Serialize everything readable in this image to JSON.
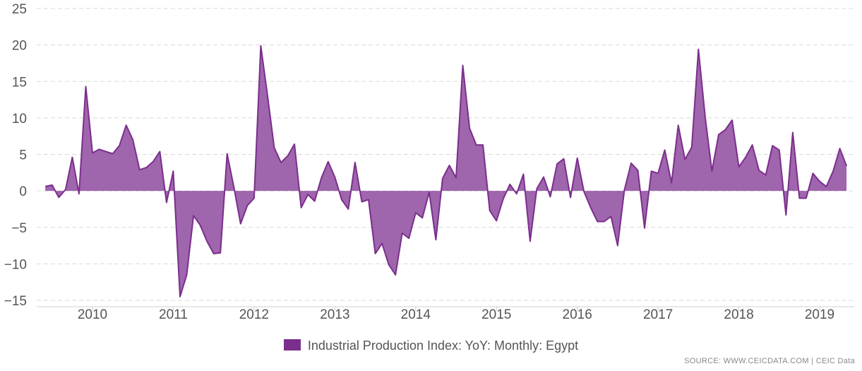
{
  "chart_data": {
    "type": "area",
    "ylim": [
      -15,
      25
    ],
    "yticks": [
      25,
      20,
      15,
      10,
      5,
      0,
      -5,
      -10,
      -15
    ],
    "xticks": [
      "2010",
      "2011",
      "2012",
      "2013",
      "2014",
      "2015",
      "2016",
      "2017",
      "2018",
      "2019"
    ],
    "series": [
      {
        "name": "Industrial Production Index: YoY: Monthly: Egypt",
        "color": "#7b2f8c",
        "fill": "#8e4a9f",
        "x": [
          "2009-06",
          "2009-07",
          "2009-08",
          "2009-09",
          "2009-10",
          "2009-11",
          "2009-12",
          "2010-01",
          "2010-02",
          "2010-03",
          "2010-04",
          "2010-05",
          "2010-06",
          "2010-07",
          "2010-08",
          "2010-09",
          "2010-10",
          "2010-11",
          "2010-12",
          "2011-01",
          "2011-02",
          "2011-03",
          "2011-04",
          "2011-05",
          "2011-06",
          "2011-07",
          "2011-08",
          "2011-09",
          "2011-10",
          "2011-11",
          "2011-12",
          "2012-01",
          "2012-02",
          "2012-03",
          "2012-04",
          "2012-05",
          "2012-06",
          "2012-07",
          "2012-08",
          "2012-09",
          "2012-10",
          "2012-11",
          "2012-12",
          "2013-01",
          "2013-02",
          "2013-03",
          "2013-04",
          "2013-05",
          "2013-06",
          "2013-07",
          "2013-08",
          "2013-09",
          "2013-10",
          "2013-11",
          "2013-12",
          "2014-01",
          "2014-02",
          "2014-03",
          "2014-04",
          "2014-05",
          "2014-06",
          "2014-07",
          "2014-08",
          "2014-09",
          "2014-10",
          "2014-11",
          "2014-12",
          "2015-01",
          "2015-02",
          "2015-03",
          "2015-04",
          "2015-05",
          "2015-06",
          "2015-07",
          "2015-08",
          "2015-09",
          "2015-10",
          "2015-11",
          "2015-12",
          "2016-01",
          "2016-02",
          "2016-03",
          "2016-04",
          "2016-05",
          "2016-06",
          "2016-07",
          "2016-08",
          "2016-09",
          "2016-10",
          "2016-11",
          "2016-12",
          "2017-01",
          "2017-02",
          "2017-03",
          "2017-04",
          "2017-05",
          "2017-06",
          "2017-07",
          "2017-08",
          "2017-09",
          "2017-10",
          "2017-11",
          "2017-12",
          "2018-01",
          "2018-02",
          "2018-03",
          "2018-04",
          "2018-05",
          "2018-06",
          "2018-07",
          "2018-08",
          "2018-09",
          "2018-10",
          "2018-11",
          "2018-12",
          "2019-01",
          "2019-02",
          "2019-03",
          "2019-04",
          "2019-05"
        ],
        "y": [
          0.6,
          0.8,
          -0.9,
          0.2,
          4.6,
          -0.4,
          14.3,
          5.2,
          5.7,
          5.4,
          5.1,
          6.2,
          9.0,
          7.0,
          2.9,
          3.2,
          4.0,
          5.4,
          -1.6,
          2.7,
          -14.5,
          -11.5,
          -3.4,
          -4.7,
          -6.9,
          -8.6,
          -8.5,
          5.1,
          0.5,
          -4.5,
          -2.0,
          -1.0,
          19.9,
          13.0,
          5.9,
          3.9,
          4.8,
          6.4,
          -2.3,
          -0.5,
          -1.4,
          1.8,
          4.0,
          1.9,
          -1.2,
          -2.5,
          3.9,
          -1.5,
          -1.2,
          -8.6,
          -7.2,
          -10.1,
          -11.5,
          -5.8,
          -6.5,
          -3.0,
          -3.7,
          -0.2,
          -6.7,
          1.7,
          3.5,
          1.8,
          17.2,
          8.6,
          6.3,
          6.3,
          -2.7,
          -4.1,
          -1.1,
          0.9,
          -0.4,
          2.3,
          -6.9,
          0.3,
          1.9,
          -0.8,
          3.7,
          4.4,
          -0.9,
          4.5,
          -0.1,
          -2.3,
          -4.2,
          -4.2,
          -3.5,
          -7.5,
          0.1,
          3.8,
          2.8,
          -5.1,
          2.7,
          2.4,
          5.6,
          1.1,
          9.0,
          4.3,
          6.0,
          19.4,
          10.1,
          2.7,
          7.7,
          8.4,
          9.7,
          3.3,
          4.6,
          6.3,
          2.8,
          2.2,
          6.2,
          5.6,
          -3.3,
          8.0,
          -1.0,
          -1.0,
          2.4,
          1.3,
          0.6,
          2.7,
          5.8,
          3.4
        ]
      }
    ],
    "legend": "bottom-center",
    "grid": true
  },
  "legend": {
    "label": "Industrial Production Index: YoY: Monthly: Egypt"
  },
  "source": "SOURCE: WWW.CEICDATA.COM | CEIC Data"
}
